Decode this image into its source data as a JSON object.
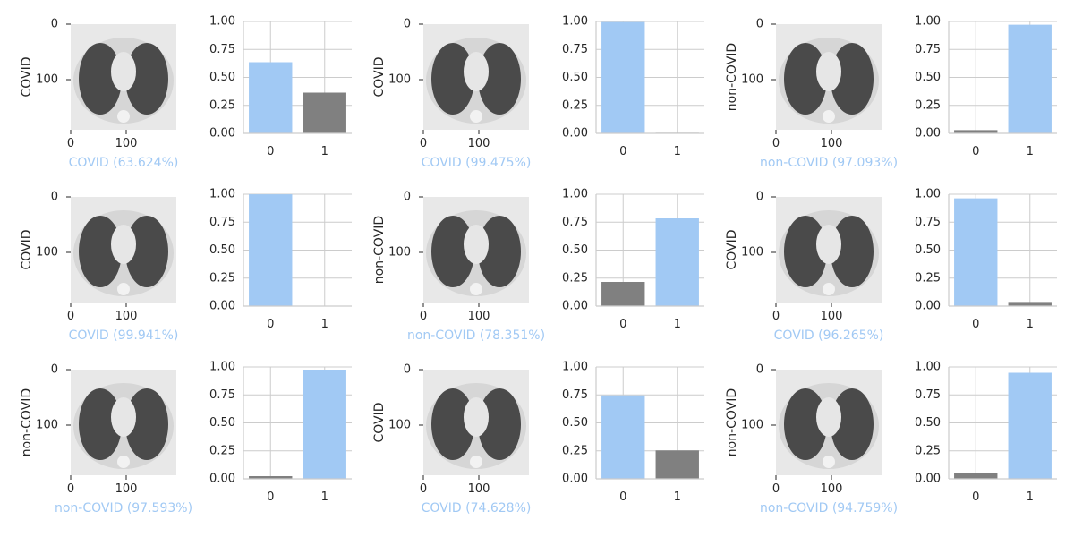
{
  "colors": {
    "predicted": "#a1c9f4",
    "other": "#808080",
    "grid": "#cccccc",
    "axis": "#cccccc",
    "text": "#262626",
    "ct_background": "#e8e8e8",
    "ct_body": "#d6d6d6",
    "ct_lung": "#4a4a4a"
  },
  "panels": [
    {
      "true_label": "COVID",
      "prediction_label": "COVID (63.624%)",
      "scan_ticks": {
        "x": [
          "0",
          "100"
        ],
        "y": [
          "0",
          "100"
        ]
      },
      "chart_data": {
        "type": "bar",
        "categories": [
          "0",
          "1"
        ],
        "values": [
          0.636,
          0.364
        ],
        "ylim": [
          0,
          1
        ],
        "yticks": [
          "0.00",
          "0.25",
          "0.50",
          "0.75",
          "1.00"
        ],
        "predicted_index": 0,
        "grid": true
      }
    },
    {
      "true_label": "COVID",
      "prediction_label": "COVID (99.475%)",
      "scan_ticks": {
        "x": [
          "0",
          "100"
        ],
        "y": [
          "0",
          "100"
        ]
      },
      "chart_data": {
        "type": "bar",
        "categories": [
          "0",
          "1"
        ],
        "values": [
          0.995,
          0.005
        ],
        "ylim": [
          0,
          1
        ],
        "yticks": [
          "0.00",
          "0.25",
          "0.50",
          "0.75",
          "1.00"
        ],
        "predicted_index": 0,
        "grid": true
      }
    },
    {
      "true_label": "non-COVID",
      "prediction_label": "non-COVID (97.093%)",
      "scan_ticks": {
        "x": [
          "0",
          "100"
        ],
        "y": [
          "0",
          "100"
        ]
      },
      "chart_data": {
        "type": "bar",
        "categories": [
          "0",
          "1"
        ],
        "values": [
          0.029,
          0.971
        ],
        "ylim": [
          0,
          1
        ],
        "yticks": [
          "0.00",
          "0.25",
          "0.50",
          "0.75",
          "1.00"
        ],
        "predicted_index": 1,
        "grid": true
      }
    },
    {
      "true_label": "COVID",
      "prediction_label": "COVID (99.941%)",
      "scan_ticks": {
        "x": [
          "0",
          "100"
        ],
        "y": [
          "0",
          "100"
        ]
      },
      "chart_data": {
        "type": "bar",
        "categories": [
          "0",
          "1"
        ],
        "values": [
          0.999,
          0.001
        ],
        "ylim": [
          0,
          1
        ],
        "yticks": [
          "0.00",
          "0.25",
          "0.50",
          "0.75",
          "1.00"
        ],
        "predicted_index": 0,
        "grid": true
      }
    },
    {
      "true_label": "non-COVID",
      "prediction_label": "non-COVID (78.351%)",
      "scan_ticks": {
        "x": [
          "0",
          "100"
        ],
        "y": [
          "0",
          "100"
        ]
      },
      "chart_data": {
        "type": "bar",
        "categories": [
          "0",
          "1"
        ],
        "values": [
          0.216,
          0.784
        ],
        "ylim": [
          0,
          1
        ],
        "yticks": [
          "0.00",
          "0.25",
          "0.50",
          "0.75",
          "1.00"
        ],
        "predicted_index": 1,
        "grid": true
      }
    },
    {
      "true_label": "COVID",
      "prediction_label": "COVID (96.265%)",
      "scan_ticks": {
        "x": [
          "0",
          "100"
        ],
        "y": [
          "0",
          "100"
        ]
      },
      "chart_data": {
        "type": "bar",
        "categories": [
          "0",
          "1"
        ],
        "values": [
          0.963,
          0.037
        ],
        "ylim": [
          0,
          1
        ],
        "yticks": [
          "0.00",
          "0.25",
          "0.50",
          "0.75",
          "1.00"
        ],
        "predicted_index": 0,
        "grid": true
      }
    },
    {
      "true_label": "non-COVID",
      "prediction_label": "non-COVID (97.593%)",
      "scan_ticks": {
        "x": [
          "0",
          "100"
        ],
        "y": [
          "0",
          "100"
        ]
      },
      "chart_data": {
        "type": "bar",
        "categories": [
          "0",
          "1"
        ],
        "values": [
          0.024,
          0.976
        ],
        "ylim": [
          0,
          1
        ],
        "yticks": [
          "0.00",
          "0.25",
          "0.50",
          "0.75",
          "1.00"
        ],
        "predicted_index": 1,
        "grid": true
      }
    },
    {
      "true_label": "COVID",
      "prediction_label": "COVID (74.628%)",
      "scan_ticks": {
        "x": [
          "0",
          "100"
        ],
        "y": [
          "0",
          "100"
        ]
      },
      "chart_data": {
        "type": "bar",
        "categories": [
          "0",
          "1"
        ],
        "values": [
          0.746,
          0.254
        ],
        "ylim": [
          0,
          1
        ],
        "yticks": [
          "0.00",
          "0.25",
          "0.50",
          "0.75",
          "1.00"
        ],
        "predicted_index": 0,
        "grid": true
      }
    },
    {
      "true_label": "non-COVID",
      "prediction_label": "non-COVID (94.759%)",
      "scan_ticks": {
        "x": [
          "0",
          "100"
        ],
        "y": [
          "0",
          "100"
        ]
      },
      "chart_data": {
        "type": "bar",
        "categories": [
          "0",
          "1"
        ],
        "values": [
          0.052,
          0.948
        ],
        "ylim": [
          0,
          1
        ],
        "yticks": [
          "0.00",
          "0.25",
          "0.50",
          "0.75",
          "1.00"
        ],
        "predicted_index": 1,
        "grid": true
      }
    }
  ]
}
